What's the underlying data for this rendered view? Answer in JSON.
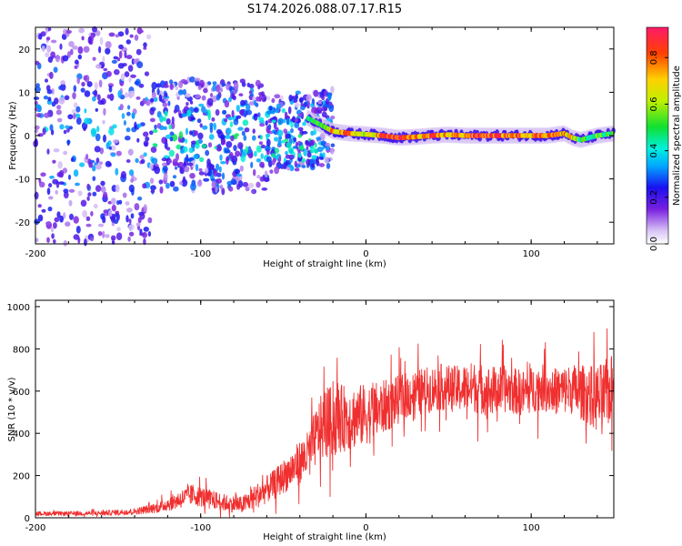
{
  "title": "S174.2026.088.07.17.R15",
  "colors": {
    "snr_line": "#f03030",
    "spectrum_strong": "#e0204a",
    "spectrum_mid": "#20e8e8",
    "spectrum_weak": "#7a2ae0",
    "spectrum_faint": "#cdb3f2"
  },
  "chart_data": [
    {
      "type": "heatmap",
      "xlabel": "Height of straight line (km)",
      "ylabel": "Frequency (Hz)",
      "xlim": [
        -200,
        150
      ],
      "ylim": [
        -25,
        25
      ],
      "xticks": [
        -200,
        -100,
        0,
        100
      ],
      "xtick_labels": [
        "-200",
        "-100",
        "0",
        "100"
      ],
      "yticks": [
        -20,
        -10,
        0,
        10,
        20
      ],
      "ytick_labels": [
        "-20",
        "-10",
        "0",
        "10",
        "20"
      ],
      "colorbar": {
        "label": "Normalized spectral amplitude",
        "range": [
          0,
          0.93
        ],
        "ticks": [
          0.0,
          0.2,
          0.4,
          0.6,
          0.8
        ],
        "tick_labels": [
          "0.0",
          "0.2",
          "0.4",
          "0.6",
          "0.8"
        ]
      },
      "carrier_track": {
        "x": [
          -35,
          -30,
          -25,
          -20,
          -10,
          0,
          10,
          20,
          30,
          40,
          50,
          60,
          70,
          80,
          90,
          100,
          110,
          120,
          125,
          130,
          140,
          150
        ],
        "freq_hz": [
          4,
          3,
          2,
          1,
          0.5,
          0.3,
          0,
          -0.5,
          -0.3,
          0,
          0.2,
          0,
          0,
          0,
          0,
          0,
          0,
          0.5,
          -0.5,
          -1,
          0,
          0.5
        ],
        "amplitude": [
          0.45,
          0.5,
          0.55,
          0.75,
          0.8,
          0.6,
          0.85,
          0.9,
          0.75,
          0.8,
          0.75,
          0.8,
          0.9,
          0.85,
          0.8,
          0.8,
          0.85,
          0.75,
          0.7,
          0.5,
          0.55,
          0.5
        ]
      },
      "scatter_region": {
        "x_range": [
          -200,
          -20
        ],
        "freq_spread_hz": [
          -25,
          25
        ],
        "amplitude_range": [
          0.05,
          0.35
        ],
        "note": "diffuse low-amplitude spectral energy below about -20 km"
      }
    },
    {
      "type": "line",
      "xlabel": "Height of straight line (km)",
      "ylabel": "SNR (10 * v/v)",
      "xlim": [
        -200,
        150
      ],
      "ylim": [
        0,
        1030
      ],
      "xticks": [
        -200,
        -100,
        0,
        100
      ],
      "xtick_labels": [
        "-200",
        "-100",
        "0",
        "100"
      ],
      "yticks": [
        0,
        200,
        400,
        600,
        800,
        1000
      ],
      "ytick_labels": [
        "0",
        "200",
        "400",
        "600",
        "800",
        "1000"
      ],
      "series": [
        {
          "name": "SNR",
          "x": [
            -200,
            -180,
            -160,
            -140,
            -125,
            -115,
            -105,
            -95,
            -85,
            -75,
            -65,
            -55,
            -45,
            -35,
            -28,
            -22,
            -15,
            -5,
            5,
            15,
            25,
            35,
            45,
            55,
            65,
            75,
            85,
            95,
            105,
            115,
            125,
            135,
            142,
            150
          ],
          "y": [
            20,
            20,
            22,
            30,
            50,
            80,
            110,
            90,
            70,
            60,
            110,
            160,
            230,
            300,
            420,
            450,
            470,
            480,
            500,
            540,
            580,
            600,
            620,
            610,
            620,
            600,
            610,
            590,
            620,
            600,
            610,
            580,
            560,
            620
          ],
          "spread": [
            10,
            10,
            12,
            15,
            25,
            40,
            50,
            45,
            40,
            40,
            60,
            70,
            90,
            110,
            150,
            170,
            160,
            150,
            140,
            120,
            110,
            110,
            110,
            110,
            120,
            120,
            110,
            110,
            110,
            110,
            120,
            140,
            170,
            160
          ]
        }
      ]
    }
  ]
}
